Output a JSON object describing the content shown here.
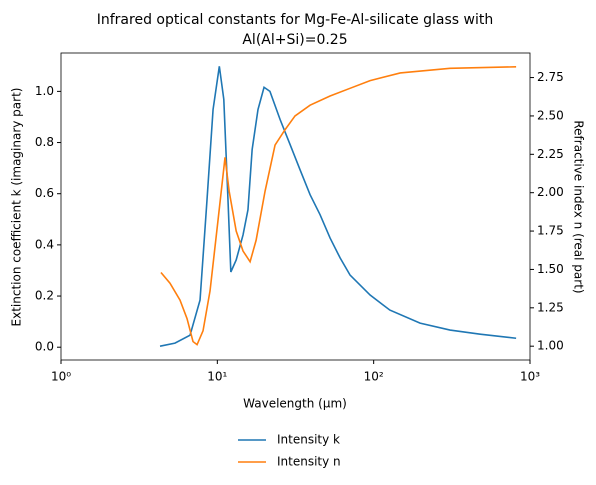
{
  "chart_data": {
    "type": "line",
    "title": [
      "Infrared optical constants for Mg-Fe-Al-silicate glass with",
      "Al(Al+Si)=0.25"
    ],
    "xlabel": "Wavelength (μm)",
    "ylabel": "Extinction coefficient k (imaginary part)",
    "y2label": "Refractive index n (real part)",
    "xscale": "log",
    "xlim": [
      1,
      1000
    ],
    "xticks": [
      {
        "value": 1,
        "label": "10⁰"
      },
      {
        "value": 10,
        "label": "10¹"
      },
      {
        "value": 100,
        "label": "10²"
      },
      {
        "value": 1000,
        "label": "10³"
      }
    ],
    "ylim": [
      -0.05,
      1.15
    ],
    "yticks": [
      {
        "value": 0,
        "label": "0.0"
      },
      0.2,
      0.4,
      0.6,
      0.8,
      {
        "value": 1,
        "label": "1.0"
      }
    ],
    "y2lim": [
      0.91,
      2.91
    ],
    "y2ticks": [
      {
        "value": 1,
        "label": "1.00"
      },
      1.25,
      {
        "value": 1.5,
        "label": "1.50"
      },
      1.75,
      {
        "value": 2,
        "label": "2.00"
      },
      2.25,
      {
        "value": 2.5,
        "label": "2.50"
      },
      2.75
    ],
    "legend": "below",
    "series": [
      {
        "name": "Intensity k",
        "color": "#1f77b4",
        "x": [
          4.3,
          5.36,
          6.69,
          7.75,
          8.59,
          9.39,
          10.3,
          11.0,
          11.7,
          12.2,
          13.2,
          14.6,
          15.7,
          16.7,
          18.2,
          19.9,
          21.7,
          25.2,
          29.2,
          33.8,
          39.2,
          45.4,
          52.6,
          61.0,
          70.6,
          94.9,
          127,
          198,
          308,
          480,
          815
        ],
        "values": [
          0.004,
          0.016,
          0.047,
          0.184,
          0.576,
          0.929,
          1.098,
          0.969,
          0.576,
          0.294,
          0.341,
          0.439,
          0.537,
          0.773,
          0.929,
          1.016,
          1.0,
          0.89,
          0.792,
          0.694,
          0.596,
          0.518,
          0.427,
          0.349,
          0.282,
          0.204,
          0.145,
          0.094,
          0.067,
          0.051,
          0.035
        ]
      },
      {
        "name": "Intensity n",
        "color": "#ff7f0e",
        "axis": "y2",
        "x": [
          4.36,
          4.98,
          5.77,
          6.4,
          6.99,
          7.42,
          8.1,
          8.98,
          10.1,
          11.2,
          11.9,
          13.2,
          14.6,
          16.2,
          17.7,
          20.2,
          23.4,
          27.1,
          31.4,
          39.2,
          52.6,
          70.6,
          94.9,
          148,
          308,
          815
        ],
        "values": [
          1.48,
          1.41,
          1.3,
          1.18,
          1.03,
          1.01,
          1.1,
          1.36,
          1.82,
          2.23,
          2.01,
          1.75,
          1.62,
          1.55,
          1.69,
          2.01,
          2.31,
          2.41,
          2.5,
          2.57,
          2.63,
          2.68,
          2.73,
          2.78,
          2.81,
          2.82
        ]
      }
    ]
  }
}
